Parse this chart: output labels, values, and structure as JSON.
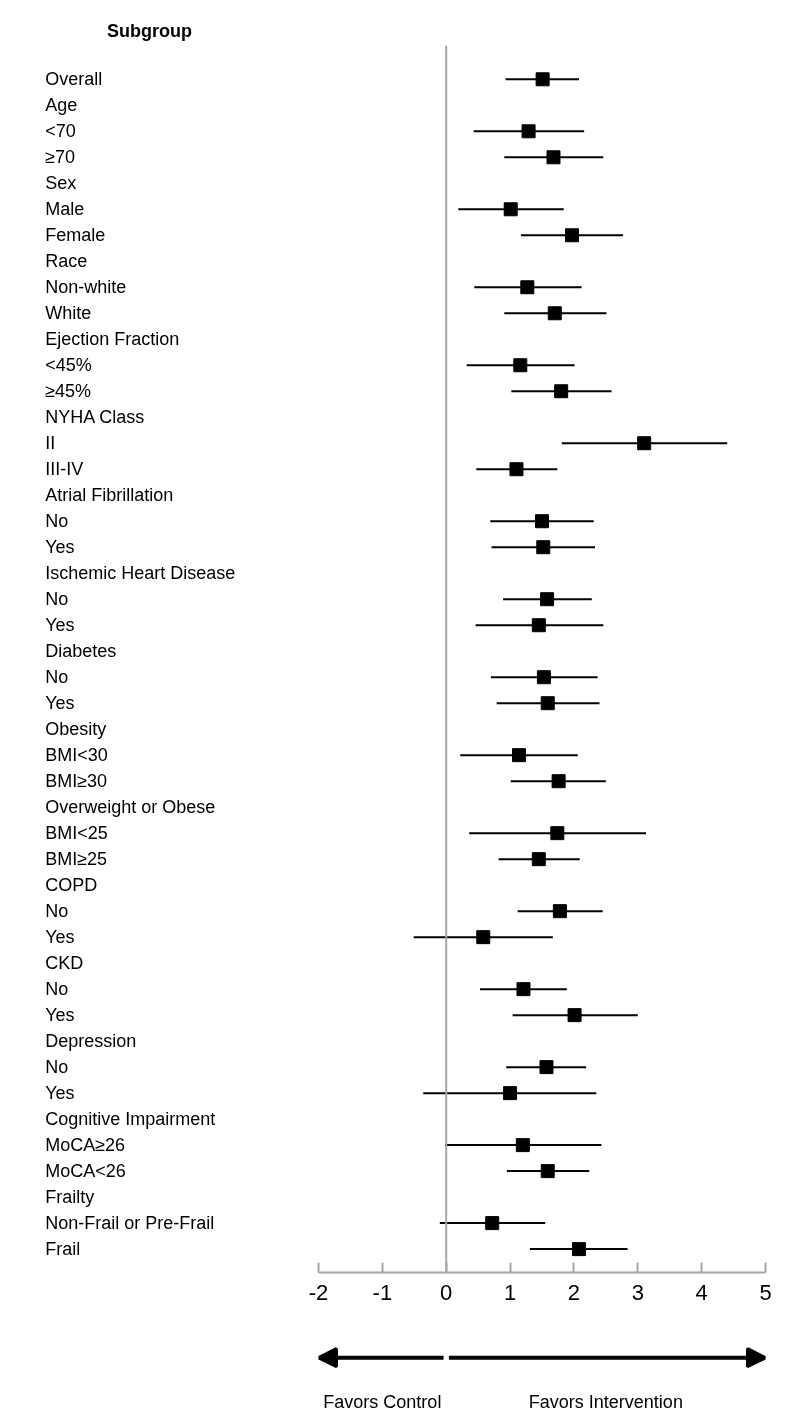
{
  "chart_data": {
    "type": "scatter",
    "orientation": "horizontal",
    "ylabel": "Subgroup",
    "categories": [
      "Overall",
      "Age",
      "<70",
      "≥70",
      "Sex",
      "Male",
      "Female",
      "Race",
      "Non-white",
      "White",
      "Ejection Fraction",
      "<45%",
      "≥45%",
      "NYHA Class",
      "II",
      "III-IV",
      "Atrial Fibrillation",
      "No",
      "Yes",
      "Ischemic Heart Disease",
      "No",
      "Yes",
      "Diabetes",
      "No",
      "Yes",
      "Obesity",
      "BMI<30",
      "BMI≥30",
      "Overweight or Obese",
      "BMI<25",
      "BMI≥25",
      "COPD",
      "No",
      "Yes",
      "CKD",
      "No",
      "Yes",
      "Depression",
      "No",
      "Yes",
      "Cognitive Impairment",
      "MoCA≥26",
      "MoCA<26",
      "Frailty",
      "Non-Frail or Pre-Frail",
      "Frail"
    ],
    "values": [
      1.51,
      null,
      1.29,
      1.68,
      null,
      1.01,
      1.97,
      null,
      1.27,
      1.7,
      null,
      1.16,
      1.8,
      null,
      3.1,
      1.1,
      null,
      1.5,
      1.52,
      null,
      1.58,
      1.45,
      null,
      1.53,
      1.59,
      null,
      1.14,
      1.76,
      null,
      1.74,
      1.45,
      null,
      1.78,
      0.58,
      null,
      1.21,
      2.01,
      null,
      1.57,
      1.0,
      null,
      1.2,
      1.59,
      null,
      0.72,
      2.08
    ],
    "errors": [
      [
        0.93,
        2.08
      ],
      null,
      [
        0.43,
        2.16
      ],
      [
        0.91,
        2.46
      ],
      null,
      [
        0.19,
        1.84
      ],
      [
        1.17,
        2.77
      ],
      null,
      [
        0.44,
        2.12
      ],
      [
        0.91,
        2.51
      ],
      null,
      [
        0.32,
        2.01
      ],
      [
        1.02,
        2.59
      ],
      null,
      [
        1.81,
        4.4
      ],
      [
        0.47,
        1.74
      ],
      null,
      [
        0.69,
        2.31
      ],
      [
        0.71,
        2.33
      ],
      null,
      [
        0.89,
        2.28
      ],
      [
        0.46,
        2.46
      ],
      null,
      [
        0.7,
        2.37
      ],
      [
        0.79,
        2.4
      ],
      null,
      [
        0.22,
        2.06
      ],
      [
        1.01,
        2.5
      ],
      null,
      [
        0.36,
        3.13
      ],
      [
        0.82,
        2.09
      ],
      null,
      [
        1.12,
        2.45
      ],
      [
        -0.51,
        1.67
      ],
      null,
      [
        0.53,
        1.89
      ],
      [
        1.04,
        3.0
      ],
      null,
      [
        0.94,
        2.19
      ],
      [
        -0.36,
        2.35
      ],
      null,
      [
        -0.02,
        2.43
      ],
      [
        0.95,
        2.24
      ],
      null,
      [
        -0.1,
        1.55
      ],
      [
        1.31,
        2.84
      ]
    ],
    "color": "#000000",
    "marker": "square",
    "xlim": [
      -2,
      5
    ],
    "xticks": [
      -2,
      -1,
      0,
      1,
      2,
      3,
      4,
      5
    ],
    "ref_lines": [
      {
        "axis": "x",
        "value": 0,
        "color": "#a6a6a6"
      }
    ],
    "annotations": [
      "Favors Control",
      "Favors Intervention"
    ]
  }
}
